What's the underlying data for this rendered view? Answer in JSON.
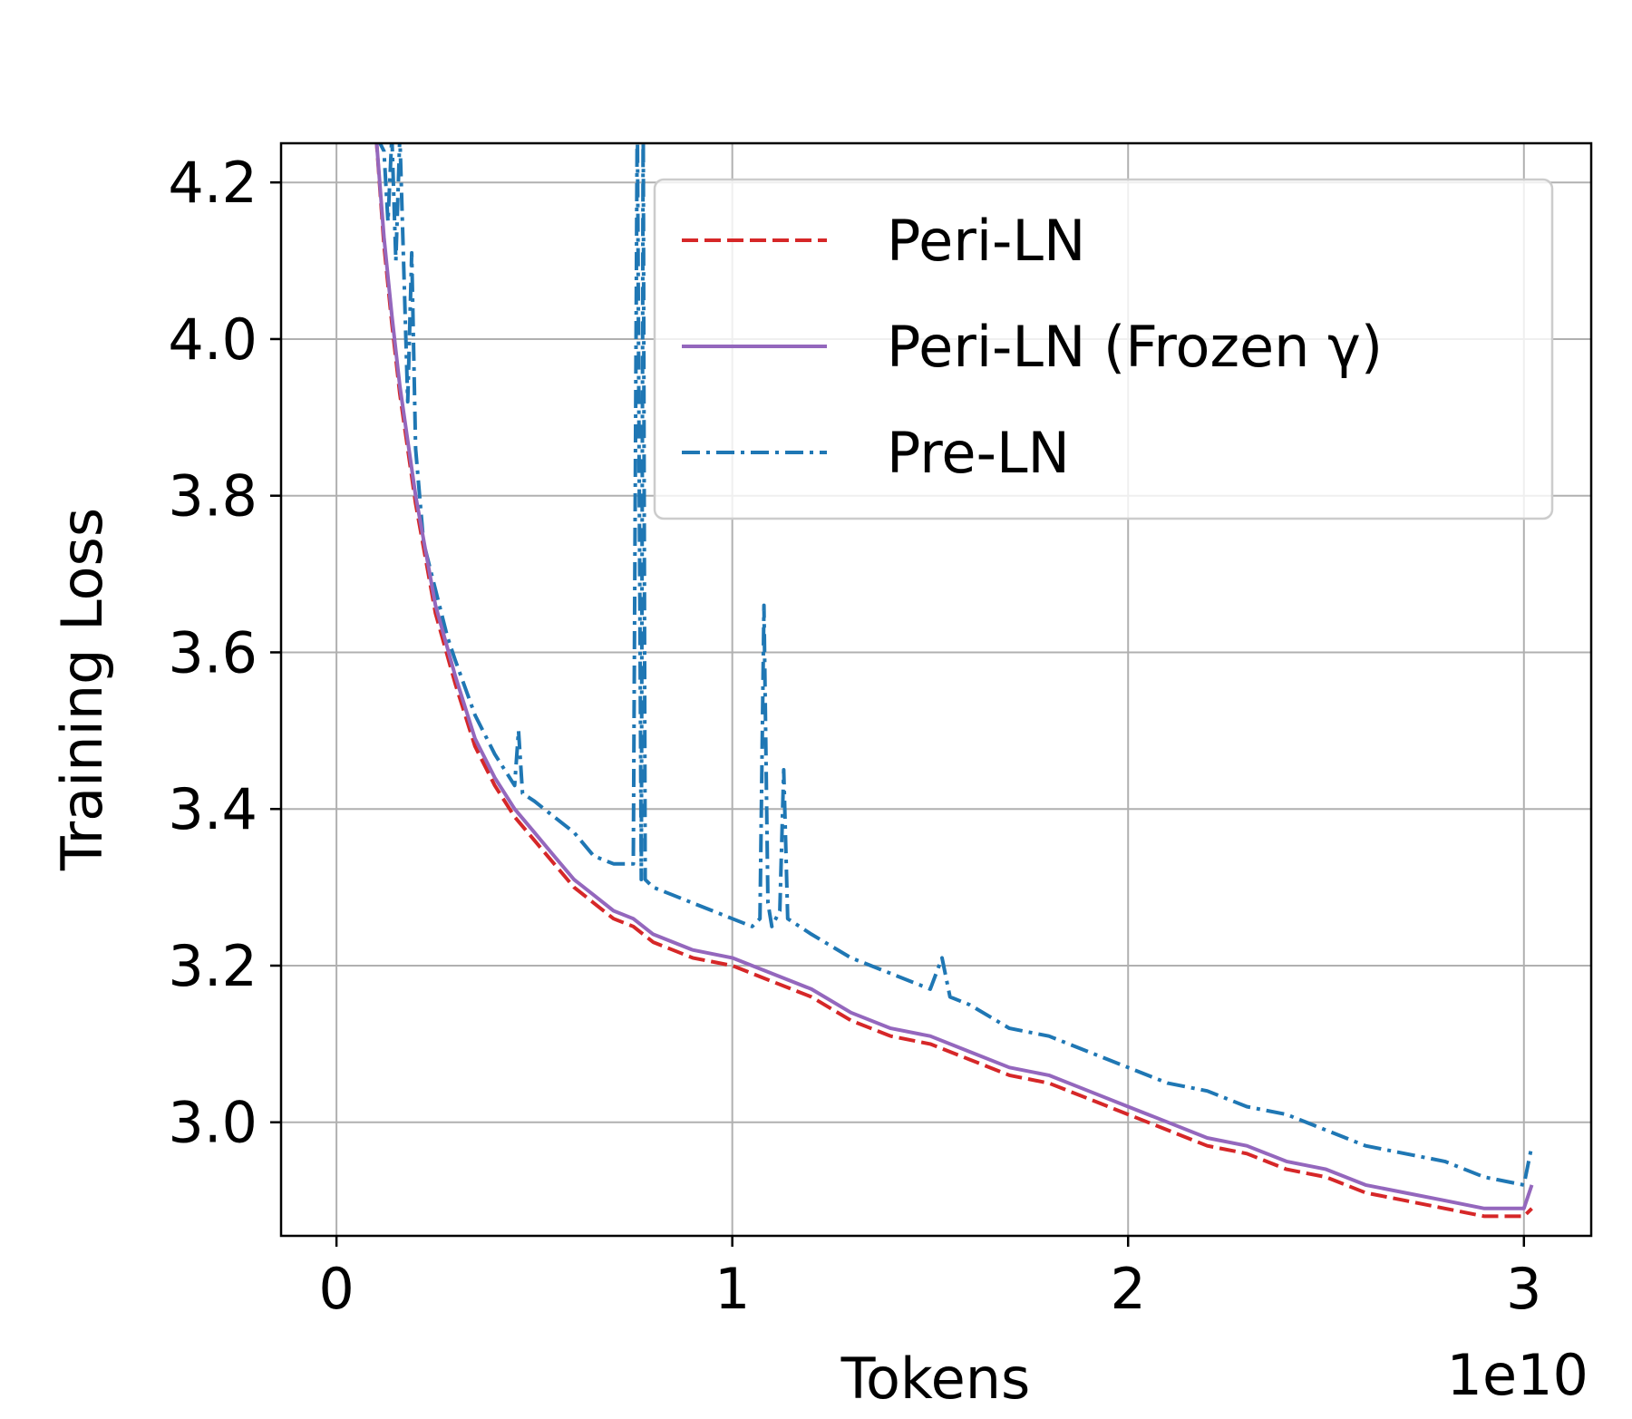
{
  "chart_data": {
    "type": "line",
    "xlabel": "Tokens",
    "ylabel": "Training Loss",
    "x_offset_label": "1e10",
    "xlim": [
      -0.14,
      3.17
    ],
    "ylim": [
      2.855,
      4.25
    ],
    "xticks": [
      0,
      1,
      2,
      3
    ],
    "xtick_labels": [
      "0",
      "1",
      "2",
      "3"
    ],
    "yticks": [
      3.0,
      3.2,
      3.4,
      3.6,
      3.8,
      4.0,
      4.2
    ],
    "ytick_labels": [
      "3.0",
      "3.2",
      "3.4",
      "3.6",
      "3.8",
      "4.0",
      "4.2"
    ],
    "grid": true,
    "legend_position": "upper right",
    "legend_entries": [
      "Peri-LN",
      "Peri-LN (Frozen γ)",
      "Pre-LN"
    ],
    "series": [
      {
        "name": "Peri-LN",
        "color": "#d62728",
        "style": "dashed",
        "x": [
          0.1,
          0.12,
          0.14,
          0.16,
          0.18,
          0.2,
          0.25,
          0.3,
          0.35,
          0.4,
          0.45,
          0.5,
          0.55,
          0.6,
          0.65,
          0.7,
          0.75,
          0.8,
          0.9,
          1.0,
          1.1,
          1.2,
          1.3,
          1.4,
          1.5,
          1.6,
          1.7,
          1.8,
          1.9,
          2.0,
          2.1,
          2.2,
          2.3,
          2.4,
          2.5,
          2.6,
          2.7,
          2.8,
          2.9,
          3.0,
          3.02
        ],
        "y": [
          4.26,
          4.12,
          4.02,
          3.93,
          3.86,
          3.79,
          3.65,
          3.56,
          3.48,
          3.43,
          3.39,
          3.36,
          3.33,
          3.3,
          3.28,
          3.26,
          3.25,
          3.23,
          3.21,
          3.2,
          3.18,
          3.16,
          3.13,
          3.11,
          3.1,
          3.08,
          3.06,
          3.05,
          3.03,
          3.01,
          2.99,
          2.97,
          2.96,
          2.94,
          2.93,
          2.91,
          2.9,
          2.89,
          2.88,
          2.88,
          2.89
        ]
      },
      {
        "name": "Peri-LN (Frozen γ)",
        "color": "#9467bd",
        "style": "solid",
        "x": [
          0.1,
          0.12,
          0.14,
          0.16,
          0.18,
          0.2,
          0.25,
          0.3,
          0.35,
          0.4,
          0.45,
          0.5,
          0.55,
          0.6,
          0.65,
          0.7,
          0.75,
          0.8,
          0.9,
          1.0,
          1.1,
          1.2,
          1.3,
          1.4,
          1.5,
          1.6,
          1.7,
          1.8,
          1.9,
          2.0,
          2.1,
          2.2,
          2.3,
          2.4,
          2.5,
          2.6,
          2.7,
          2.8,
          2.9,
          3.0,
          3.02
        ],
        "y": [
          4.26,
          4.13,
          4.03,
          3.94,
          3.87,
          3.8,
          3.66,
          3.57,
          3.49,
          3.44,
          3.4,
          3.37,
          3.34,
          3.31,
          3.29,
          3.27,
          3.26,
          3.24,
          3.22,
          3.21,
          3.19,
          3.17,
          3.14,
          3.12,
          3.11,
          3.09,
          3.07,
          3.06,
          3.04,
          3.02,
          3.0,
          2.98,
          2.97,
          2.95,
          2.94,
          2.92,
          2.91,
          2.9,
          2.89,
          2.89,
          2.92
        ]
      },
      {
        "name": "Pre-LN",
        "color": "#1f77b4",
        "style": "dashdot",
        "x": [
          0.1,
          0.12,
          0.13,
          0.14,
          0.15,
          0.16,
          0.18,
          0.19,
          0.2,
          0.22,
          0.25,
          0.28,
          0.3,
          0.35,
          0.4,
          0.45,
          0.46,
          0.47,
          0.5,
          0.55,
          0.6,
          0.65,
          0.7,
          0.75,
          0.76,
          0.77,
          0.775,
          0.78,
          0.8,
          0.85,
          0.9,
          0.95,
          1.0,
          1.05,
          1.07,
          1.08,
          1.09,
          1.1,
          1.12,
          1.13,
          1.14,
          1.2,
          1.3,
          1.4,
          1.5,
          1.53,
          1.55,
          1.6,
          1.7,
          1.8,
          1.9,
          2.0,
          2.1,
          2.2,
          2.3,
          2.4,
          2.5,
          2.6,
          2.7,
          2.8,
          2.9,
          3.0,
          3.02
        ],
        "y": [
          4.26,
          4.24,
          4.15,
          4.26,
          4.1,
          4.26,
          3.92,
          4.11,
          3.86,
          3.74,
          3.68,
          3.62,
          3.59,
          3.52,
          3.47,
          3.43,
          3.5,
          3.42,
          3.41,
          3.39,
          3.37,
          3.34,
          3.33,
          3.33,
          4.3,
          3.31,
          4.3,
          3.31,
          3.3,
          3.29,
          3.28,
          3.27,
          3.26,
          3.25,
          3.26,
          3.66,
          3.28,
          3.25,
          3.27,
          3.45,
          3.26,
          3.24,
          3.21,
          3.19,
          3.17,
          3.21,
          3.16,
          3.15,
          3.12,
          3.11,
          3.09,
          3.07,
          3.05,
          3.04,
          3.02,
          3.01,
          2.99,
          2.97,
          2.96,
          2.95,
          2.93,
          2.92,
          2.97
        ]
      }
    ]
  }
}
